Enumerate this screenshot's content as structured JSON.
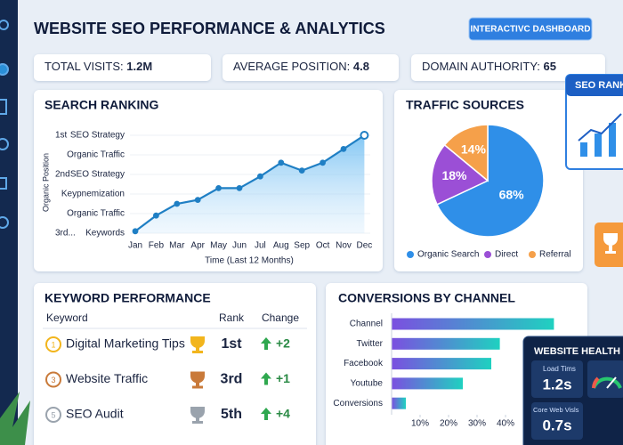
{
  "header": {
    "title": "WEBSITE SEO PERFORMANCE & ANALYTICS",
    "button": "INTERACTIVC DASHBOARD"
  },
  "kpis": [
    {
      "label": "TOTAL VISITS:",
      "value": "1.2M"
    },
    {
      "label": "AVERAGE POSITION:",
      "value": "4.8"
    },
    {
      "label": "DOMAIN AUTHORITY:",
      "value": "65"
    }
  ],
  "chart_data": [
    {
      "type": "line",
      "title": "SEARCH RANKING",
      "y_label": "Organic Position",
      "x_label": "Time (Last 12 Months)",
      "categories": [
        "Jan",
        "Feb",
        "Mar",
        "Apr",
        "May",
        "Jun",
        "Jul",
        "Aug",
        "Sep",
        "Oct",
        "Nov",
        "Dec"
      ],
      "series": [
        {
          "color": "#1f7fc4",
          "values": [
            0.1,
            0.9,
            1.5,
            1.7,
            2.3,
            2.3,
            2.9,
            3.6,
            3.2,
            3.6,
            4.3,
            5.0
          ]
        }
      ],
      "ylim": [
        0,
        5.2
      ],
      "yticks": [
        {
          "value": 5,
          "label": "SEO Strategy"
        },
        {
          "value": 4,
          "label": "Organic Traffic"
        },
        {
          "value": 3,
          "label": "SEO Strategy"
        },
        {
          "value": 2,
          "label": "Keypnemization"
        },
        {
          "value": 1,
          "label": "Organic Traffic"
        },
        {
          "value": 0,
          "label": "Keywords"
        }
      ],
      "rank_labels": [
        {
          "value": 5,
          "label": "1st"
        },
        {
          "value": 3,
          "label": "2nd"
        },
        {
          "value": 0,
          "label": "3rd..."
        }
      ],
      "grid": true
    },
    {
      "type": "pie",
      "title": "TRAFFIC SOURCES",
      "categories": [
        "Organic Search",
        "Direct",
        "Referral"
      ],
      "values": [
        68,
        18,
        14
      ],
      "value_labels": [
        "68%",
        "18%",
        "14%"
      ],
      "colors": [
        "#2f8fe8",
        "#9b4fd6",
        "#f5a04a"
      ],
      "legend": "bottom"
    },
    {
      "type": "hbar",
      "title": "CONVERSIONS BY CHANNEL",
      "categories": [
        "Channel",
        "Twitter",
        "Facebook",
        "Youtube",
        "Conversions"
      ],
      "values": [
        57,
        38,
        35,
        25,
        5
      ],
      "xlim": [
        0,
        60
      ],
      "xticks": [
        {
          "value": 10,
          "label": "10%"
        },
        {
          "value": 20,
          "label": "20%"
        },
        {
          "value": 30,
          "label": "30%"
        },
        {
          "value": 40,
          "label": "40%"
        }
      ],
      "colors": [
        "#7b4fe0",
        "#1fd1c0"
      ]
    }
  ],
  "keyword_table": {
    "title": "KEYWORD PERFORMANCE",
    "headers": [
      "Keyword",
      "Rank",
      "Change"
    ],
    "rows": [
      {
        "index": "1",
        "keyword": "Digital Marketing Tips",
        "rank": "1st",
        "change": "+2"
      },
      {
        "index": "3",
        "keyword": "Website Traffic",
        "rank": "3rd",
        "change": "+1"
      },
      {
        "index": "5",
        "keyword": "SEO Audit",
        "rank": "5th",
        "change": "+4"
      }
    ]
  },
  "side_cards": {
    "seo_rank": "SEO RANK",
    "health": {
      "title": "WEBSITE HEALTH",
      "metrics": [
        {
          "label": "Load Tims",
          "value": "1.2s"
        },
        {
          "label": "Core Web Visls",
          "value": "0.7s"
        }
      ]
    }
  }
}
